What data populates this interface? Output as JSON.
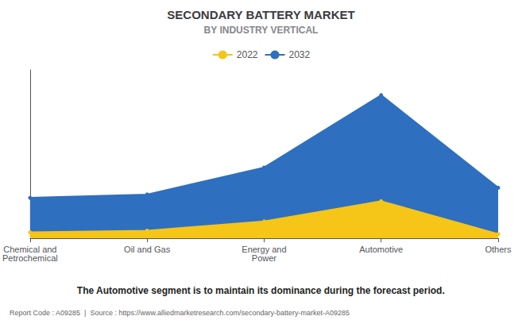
{
  "chart_data": {
    "type": "area",
    "title": "SECONDARY BATTERY MARKET",
    "subtitle": "BY INDUSTRY VERTICAL",
    "categories": [
      "Chemical and\nPetrochemical",
      "Oil and Gas",
      "Energy and\nPower",
      "Automotive",
      "Others"
    ],
    "series": [
      {
        "name": "2022",
        "color": "#F5C518",
        "values": [
          3.5,
          4.5,
          10,
          22,
          2.5
        ]
      },
      {
        "name": "2032",
        "color": "#2F6FBF",
        "values": [
          24,
          26,
          42,
          85,
          30
        ]
      }
    ],
    "ylim": [
      0,
      100
    ],
    "tick_labels": "x",
    "grid": false,
    "legend": "top",
    "marker": "circle",
    "annotations": [
      "The Automotive segment is to maintain its dominance during the forecast period.",
      "Report Code : A09285  |  Source : https://www.alliedmarketresearch.com/secondary-battery-market-A09285"
    ]
  }
}
